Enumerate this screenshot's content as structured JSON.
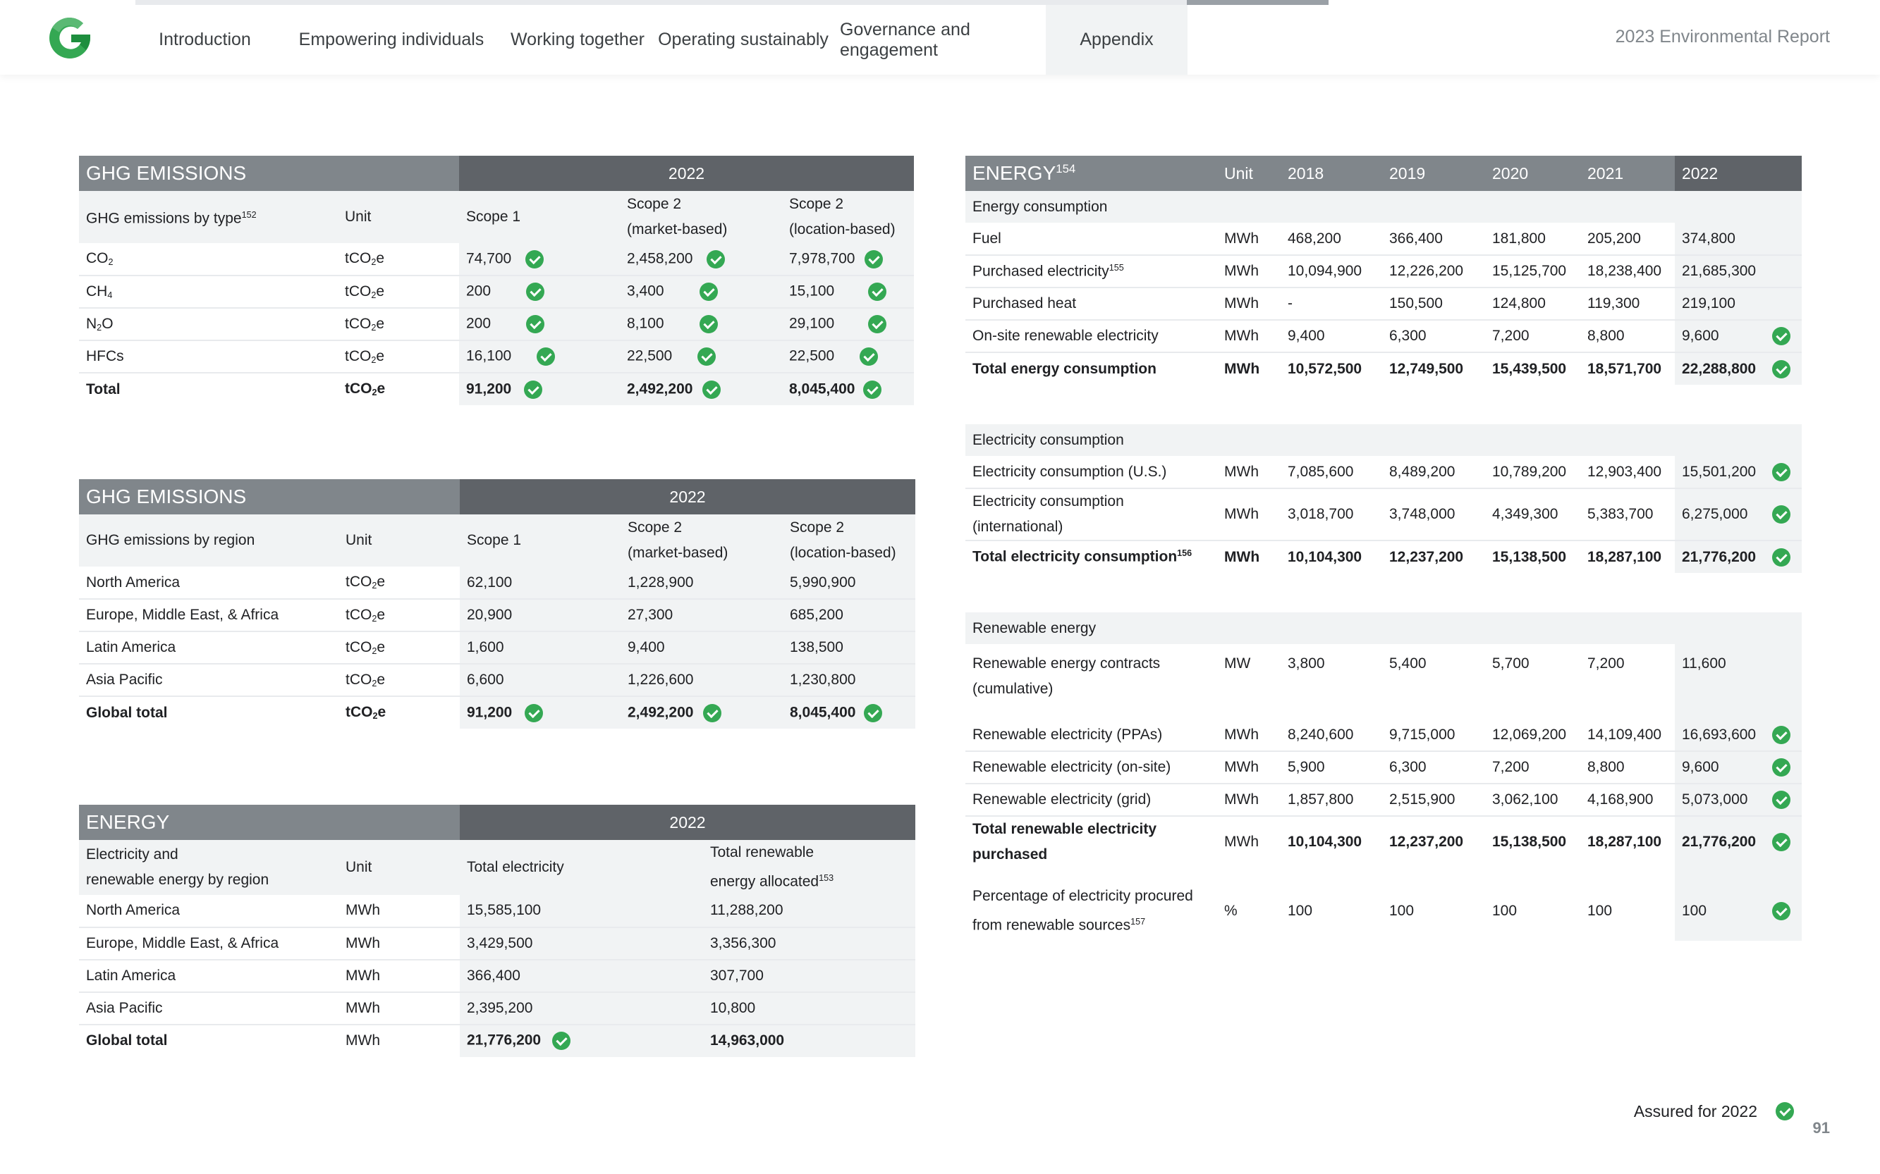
{
  "header": {
    "nav": [
      {
        "label": "Introduction",
        "active": false
      },
      {
        "label": "Empowering individuals",
        "active": false
      },
      {
        "label": "Working together",
        "active": false
      },
      {
        "label": "Operating sustainably",
        "active": false
      },
      {
        "label": "Governance and engagement",
        "active": false
      },
      {
        "label": "Appendix",
        "active": true
      }
    ],
    "report_title": "2023 Environmental Report",
    "logo_icon": "google-g-logo-icon",
    "colors": {
      "accent_green": "#34a853",
      "header_grey": "#80868b",
      "header_dark": "#5f6368"
    }
  },
  "ghg_type": {
    "title": "GHG EMISSIONS",
    "year": "2022",
    "col_label": "GHG emissions by type",
    "col_label_ref": "152",
    "unit": "Unit",
    "scope1": "Scope 1",
    "scope2m_a": "Scope 2",
    "scope2m_b": "(market-based)",
    "scope2l_a": "Scope 2",
    "scope2l_b": "(location-based)",
    "rows": [
      {
        "label": "CO",
        "sub": "2",
        "unit_a": "tCO",
        "unit_sub": "2",
        "unit_b": "e",
        "s1": "74,700",
        "s2m": "2,458,200",
        "s2l": "7,978,700"
      },
      {
        "label": "CH",
        "sub": "4",
        "unit_a": "tCO",
        "unit_sub": "2",
        "unit_b": "e",
        "s1": "200",
        "s2m": "3,400",
        "s2l": "15,100"
      },
      {
        "label": "N",
        "sub": "2",
        "label_tail": "O",
        "unit_a": "tCO",
        "unit_sub": "2",
        "unit_b": "e",
        "s1": "200",
        "s2m": "8,100",
        "s2l": "29,100"
      },
      {
        "label": "HFCs",
        "unit_a": "tCO",
        "unit_sub": "2",
        "unit_b": "e",
        "s1": "16,100",
        "s2m": "22,500",
        "s2l": "22,500"
      },
      {
        "label": "Total",
        "unit_a": "tCO",
        "unit_sub": "2",
        "unit_b": "e",
        "s1": "91,200",
        "s2m": "2,492,200",
        "s2l": "8,045,400"
      }
    ]
  },
  "ghg_region": {
    "title": "GHG EMISSIONS",
    "year": "2022",
    "col_label": "GHG emissions by region",
    "unit": "Unit",
    "scope1": "Scope 1",
    "scope2m_a": "Scope 2",
    "scope2m_b": "(market-based)",
    "scope2l_a": "Scope 2",
    "scope2l_b": "(location-based)",
    "rows": [
      {
        "label": "North America",
        "s1": "62,100",
        "s2m": "1,228,900",
        "s2l": "5,990,900"
      },
      {
        "label": "Europe, Middle East, & Africa",
        "s1": "20,900",
        "s2m": "27,300",
        "s2l": "685,200"
      },
      {
        "label": "Latin America",
        "s1": "1,600",
        "s2m": "9,400",
        "s2l": "138,500"
      },
      {
        "label": "Asia Pacific",
        "s1": "6,600",
        "s2m": "1,226,600",
        "s2l": "1,230,800"
      },
      {
        "label": "Global total",
        "s1": "91,200",
        "s2m": "2,492,200",
        "s2l": "8,045,400"
      }
    ]
  },
  "energy_region": {
    "title": "ENERGY",
    "year": "2022",
    "col_label_a": "Electricity and",
    "col_label_b": "renewable energy by region",
    "unit": "Unit",
    "total_elec": "Total electricity",
    "total_ren_a": "Total renewable",
    "total_ren_b": "energy allocated",
    "total_ren_ref": "153",
    "rows": [
      {
        "label": "North America",
        "unit": "MWh",
        "elec": "15,585,100",
        "ren": "11,288,200"
      },
      {
        "label": "Europe, Middle East, & Africa",
        "unit": "MWh",
        "elec": "3,429,500",
        "ren": "3,356,300"
      },
      {
        "label": "Latin America",
        "unit": "MWh",
        "elec": "366,400",
        "ren": "307,700"
      },
      {
        "label": "Asia Pacific",
        "unit": "MWh",
        "elec": "2,395,200",
        "ren": "10,800"
      },
      {
        "label": "Global total",
        "unit": "MWh",
        "elec": "21,776,200",
        "ren": "14,963,000"
      }
    ]
  },
  "energy": {
    "title": "ENERGY",
    "title_ref": "154",
    "unit": "Unit",
    "years": [
      "2018",
      "2019",
      "2020",
      "2021",
      "2022"
    ],
    "sec_consumption": "Energy consumption",
    "consumption_rows": [
      {
        "label": "Fuel",
        "unit": "MWh",
        "v": [
          "468,200",
          "366,400",
          "181,800",
          "205,200",
          "374,800"
        ]
      },
      {
        "label": "Purchased electricity",
        "ref": "155",
        "unit": "MWh",
        "v": [
          "10,094,900",
          "12,226,200",
          "15,125,700",
          "18,238,400",
          "21,685,300"
        ]
      },
      {
        "label": "Purchased heat",
        "unit": "MWh",
        "v": [
          "-",
          "150,500",
          "124,800",
          "119,300",
          "219,100"
        ]
      },
      {
        "label": "On-site renewable electricity",
        "unit": "MWh",
        "v": [
          "9,400",
          "6,300",
          "7,200",
          "8,800",
          "9,600"
        ]
      },
      {
        "label": "Total energy consumption",
        "unit": "MWh",
        "v": [
          "10,572,500",
          "12,749,500",
          "15,439,500",
          "18,571,700",
          "22,288,800"
        ]
      }
    ],
    "sec_electricity": "Electricity consumption",
    "electricity_rows": [
      {
        "label": "Electricity consumption (U.S.)",
        "unit": "MWh",
        "v": [
          "7,085,600",
          "8,489,200",
          "10,789,200",
          "12,903,400",
          "15,501,200"
        ]
      },
      {
        "label_a": "Electricity consumption",
        "label_b": "(international)",
        "unit": "MWh",
        "v": [
          "3,018,700",
          "3,748,000",
          "4,349,300",
          "5,383,700",
          "6,275,000"
        ]
      },
      {
        "label": "Total electricity consumption",
        "ref": "156",
        "unit": "MWh",
        "v": [
          "10,104,300",
          "12,237,200",
          "15,138,500",
          "18,287,100",
          "21,776,200"
        ]
      }
    ],
    "sec_renewable": "Renewable energy",
    "renewable_contracts": {
      "label_a": "Renewable energy contracts",
      "label_b": "(cumulative)",
      "unit": "MW",
      "v": [
        "3,800",
        "5,400",
        "5,700",
        "7,200",
        "11,600"
      ]
    },
    "renewable_rows": [
      {
        "label": "Renewable electricity (PPAs)",
        "unit": "MWh",
        "v": [
          "8,240,600",
          "9,715,000",
          "12,069,200",
          "14,109,400",
          "16,693,600"
        ]
      },
      {
        "label": "Renewable electricity (on-site)",
        "unit": "MWh",
        "v": [
          "5,900",
          "6,300",
          "7,200",
          "8,800",
          "9,600"
        ]
      },
      {
        "label": "Renewable electricity (grid)",
        "unit": "MWh",
        "v": [
          "1,857,800",
          "2,515,900",
          "3,062,100",
          "4,168,900",
          "5,073,000"
        ]
      }
    ],
    "total_renewable": {
      "label_a": "Total renewable electricity",
      "label_b": "purchased",
      "unit": "MWh",
      "v": [
        "10,104,300",
        "12,237,200",
        "15,138,500",
        "18,287,100",
        "21,776,200"
      ]
    },
    "percentage": {
      "label_a": "Percentage of electricity procured",
      "label_b": "from renewable sources",
      "ref": "157",
      "unit": "%",
      "v": [
        "100",
        "100",
        "100",
        "100",
        "100"
      ]
    }
  },
  "footer": {
    "assured": "Assured for 2022",
    "page": "91"
  }
}
